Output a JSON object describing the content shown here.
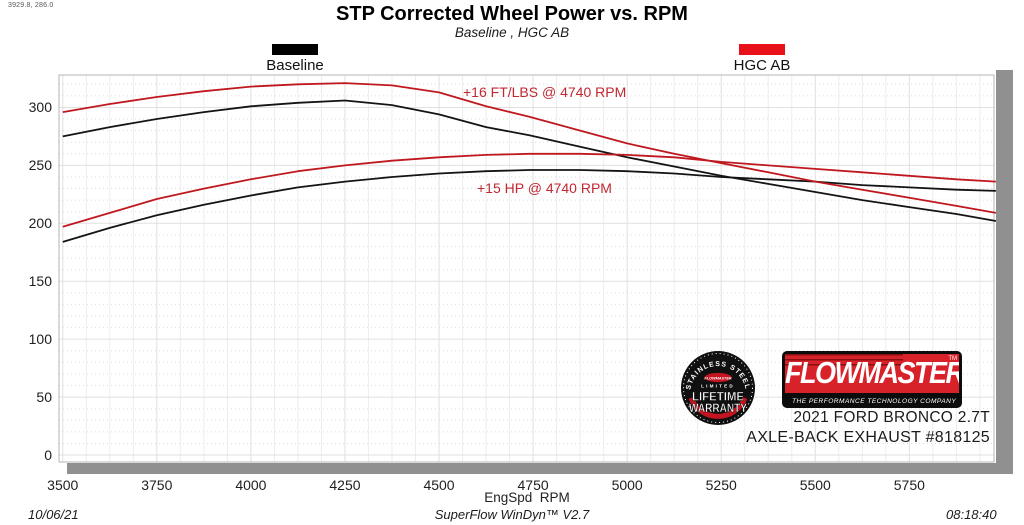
{
  "header": {
    "readout": "3929.8, 286.0",
    "title": "STP Corrected Wheel Power vs. RPM",
    "subtitle": "Baseline , HGC AB"
  },
  "legend": [
    {
      "label": "Baseline",
      "color": "#000000"
    },
    {
      "label": "HGC AB",
      "color": "#e8111a"
    }
  ],
  "chart_data": {
    "type": "line",
    "title": "STP Corrected Wheel Power vs. RPM",
    "subtitle": "Baseline , HGC AB",
    "xlabel": "EngSpd  RPM",
    "ylabel": "",
    "xlim": [
      3490,
      5975
    ],
    "ylim": [
      -6,
      328
    ],
    "x_ticks": [
      3500,
      3750,
      4000,
      4250,
      4500,
      4750,
      5000,
      5250,
      5500,
      5750
    ],
    "y_ticks": [
      0,
      50,
      100,
      150,
      200,
      250,
      300
    ],
    "grid": {
      "x_minor_step_rpm": 62.5,
      "y_major_step": 50,
      "y_minor_step": 10,
      "legend_position": "top"
    },
    "x": [
      3500,
      3625,
      3750,
      3875,
      4000,
      4125,
      4250,
      4375,
      4500,
      4625,
      4740,
      4875,
      5000,
      5125,
      5250,
      5375,
      5500,
      5625,
      5750,
      5875,
      5980
    ],
    "series": [
      {
        "name": "Baseline HP",
        "color": "#141414",
        "values": [
          184,
          196,
          207,
          216,
          224,
          231,
          236,
          240,
          243,
          245,
          246,
          246,
          245,
          243,
          240,
          238,
          236,
          233,
          231,
          229,
          228
        ]
      },
      {
        "name": "Baseline FT/LBS",
        "color": "#141414",
        "values": [
          275,
          283,
          290,
          296,
          301,
          304,
          306,
          302,
          294,
          283,
          276,
          266,
          257,
          249,
          241,
          234,
          227,
          220,
          214,
          208,
          202
        ]
      },
      {
        "name": "HGC AB HP",
        "color": "#c0181f",
        "values": [
          197,
          209,
          221,
          230,
          238,
          245,
          250,
          254,
          257,
          259,
          260,
          260,
          259,
          257,
          253,
          250,
          247,
          244,
          241,
          238,
          236
        ]
      },
      {
        "name": "HGC AB FT/LBS",
        "color": "#c0181f",
        "values": [
          296,
          303,
          309,
          314,
          318,
          320,
          321,
          319,
          313,
          301,
          292,
          280,
          269,
          260,
          252,
          244,
          236,
          229,
          222,
          215,
          209
        ]
      }
    ],
    "annotations": [
      {
        "text": "+16 FT/LBS @ 4740 RPM",
        "color": "#c02832"
      },
      {
        "text": "+15 HP @ 4740 RPM",
        "color": "#c02832"
      }
    ]
  },
  "branding": {
    "badge": {
      "arc_text": "STAINLESS STEEL",
      "brand": "FLOWMASTER",
      "limited": "LIMITED",
      "line1": "LIFETIME",
      "line2": "WARRANTY"
    },
    "logo": {
      "name": "FLOWMASTER",
      "tm": "TM",
      "tagline": "THE PERFORMANCE TECHNOLOGY COMPANY",
      "red": "#d7222a"
    },
    "vehicle_line1": "2021 FORD BRONCO 2.7T",
    "vehicle_line2": "AXLE-BACK EXHAUST #818125"
  },
  "axis": {
    "x_label": "EngSpd  RPM"
  },
  "footer": {
    "date": "10/06/21",
    "software": "SuperFlow WinDyn™ V2.7",
    "time": "08:18:40"
  }
}
